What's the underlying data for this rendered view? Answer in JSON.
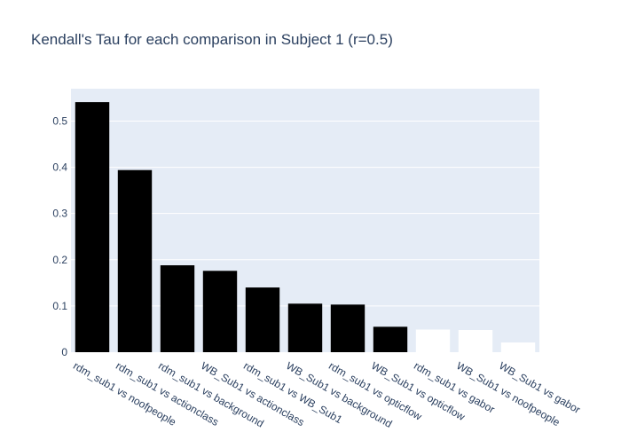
{
  "chart_data": {
    "type": "bar",
    "title": "Kendall's Tau for each comparison in Subject 1 (r=0.5)",
    "xlabel": "",
    "ylabel": "",
    "categories": [
      "rdm_sub1 vs noofpeople",
      "rdm_sub1 vs actionclass",
      "rdm_sub1 vs background",
      "WB_Sub1 vs actionclass",
      "rdm_sub1 vs WB_Sub1",
      "WB_Sub1 vs background",
      "rdm_sub1 vs opticflow",
      "WB_Sub1 vs opticflow",
      "rdm_sub1 vs gabor",
      "WB_Sub1 vs noofpeople",
      "WB_Sub1 vs gabor"
    ],
    "values": [
      0.541,
      0.394,
      0.188,
      0.176,
      0.14,
      0.105,
      0.103,
      0.055,
      0.049,
      0.048,
      0.021
    ],
    "bar_colors": [
      "#000000",
      "#000000",
      "#000000",
      "#000000",
      "#000000",
      "#000000",
      "#000000",
      "#000000",
      "#ffffff",
      "#ffffff",
      "#ffffff"
    ],
    "ylim": [
      0,
      0.57
    ],
    "yticks": [
      0,
      0.1,
      0.2,
      0.3,
      0.4,
      0.5
    ],
    "ytick_labels": [
      "0",
      "0.1",
      "0.2",
      "0.3",
      "0.4",
      "0.5"
    ],
    "grid": true,
    "legend": "none",
    "colors": {
      "plot_background": "#e5ecf6",
      "grid": "#ffffff",
      "text": "#2a3f5f"
    }
  }
}
